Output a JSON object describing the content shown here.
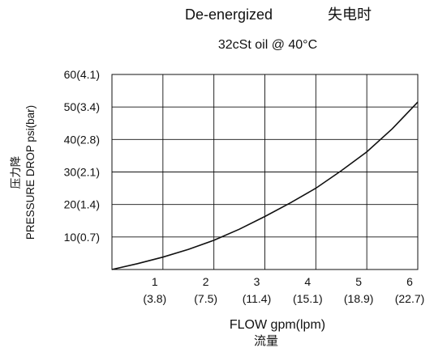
{
  "chart_data": {
    "type": "line",
    "title": "De-energized",
    "title_cn": "失电时",
    "subtitle": "32cSt oil @ 40°C",
    "xlabel": "FLOW gpm(lpm)",
    "xlabel_cn": "流量",
    "ylabel": "PRESSURE DROP psi(bar)",
    "ylabel_cn": "压力降",
    "xlim": [
      0,
      6
    ],
    "ylim": [
      0,
      60
    ],
    "grid": true,
    "x_ticks": [
      {
        "value": 1,
        "label": "1",
        "sub": "(3.8)"
      },
      {
        "value": 2,
        "label": "2",
        "sub": "(7.5)"
      },
      {
        "value": 3,
        "label": "3",
        "sub": "(11.4)"
      },
      {
        "value": 4,
        "label": "4",
        "sub": "(15.1)"
      },
      {
        "value": 5,
        "label": "5",
        "sub": "(18.9)"
      },
      {
        "value": 6,
        "label": "6",
        "sub": "(22.7)"
      }
    ],
    "y_ticks": [
      {
        "value": 10,
        "label": "10(0.7)"
      },
      {
        "value": 20,
        "label": "20(1.4)"
      },
      {
        "value": 30,
        "label": "30(2.1)"
      },
      {
        "value": 40,
        "label": "40(2.8)"
      },
      {
        "value": 50,
        "label": "50(3.4)"
      },
      {
        "value": 60,
        "label": "60(4.1)"
      }
    ],
    "series": [
      {
        "x": [
          0,
          0.5,
          1,
          1.5,
          2,
          2.5,
          3,
          3.5,
          4,
          4.5,
          5,
          5.5,
          6
        ],
        "y": [
          0,
          1.8,
          3.8,
          6.2,
          9,
          12.4,
          16.3,
          20.5,
          25,
          30.4,
          36.2,
          43.3,
          51.5
        ]
      }
    ]
  }
}
